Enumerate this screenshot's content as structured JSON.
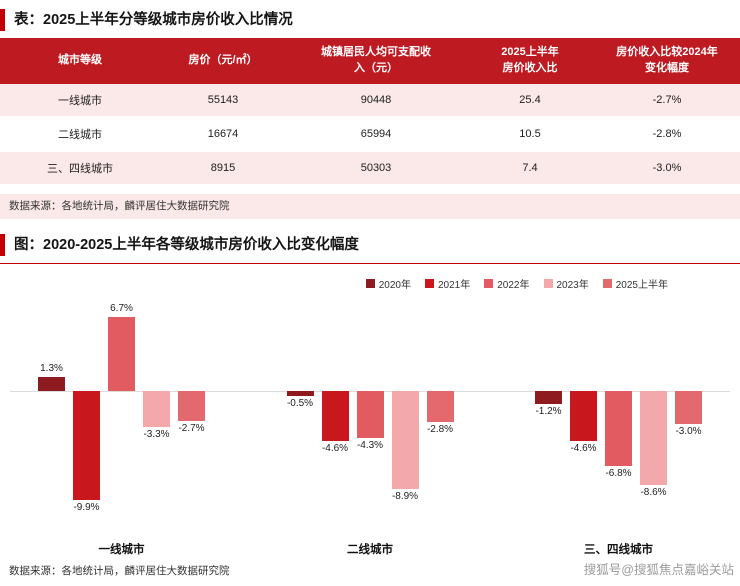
{
  "table_section": {
    "title": "表：2025上半年分等级城市房价收入比情况",
    "headers": [
      "城市等级",
      "房价（元/㎡）",
      "城镇居民人均可支配收\n入（元）",
      "2025上半年\n房价收入比",
      "房价收入比较2024年\n变化幅度"
    ],
    "source": "数据来源：各地统计局，麟评居住大数据研究院"
  },
  "chart_section": {
    "title": "图：2020-2025上半年各等级城市房价收入比变化幅度",
    "source": "数据来源：各地统计局，麟评居住大数据研究院"
  },
  "watermark": "搜狐号@搜狐焦点嘉峪关站",
  "colors": {
    "table_header_red": "#BD1A21",
    "accent_red": "#C00000",
    "row_pink": "#FBE8E8",
    "baseline_gray": "#DCDCDC",
    "watermark_gray": "#9B9B9B"
  },
  "chart_data": [
    {
      "type": "table",
      "title": "2025上半年分等级城市房价收入比情况",
      "columns": [
        "城市等级",
        "房价（元/㎡）",
        "城镇居民人均可支配收入（元）",
        "2025上半年房价收入比",
        "房价收入比较2024年变化幅度"
      ],
      "rows": [
        [
          "一线城市",
          "55143",
          "90448",
          "25.4",
          "-2.7%"
        ],
        [
          "二线城市",
          "16674",
          "65994",
          "10.5",
          "-2.8%"
        ],
        [
          "三、四线城市",
          "8915",
          "50303",
          "7.4",
          "-3.0%"
        ]
      ]
    },
    {
      "type": "bar",
      "title": "2020-2025上半年各等级城市房价收入比变化幅度",
      "categories": [
        "一线城市",
        "二线城市",
        "三、四线城市"
      ],
      "series": [
        {
          "name": "2020年",
          "color": "#8E1B1F",
          "values": [
            1.3,
            -0.5,
            -1.2
          ]
        },
        {
          "name": "2021年",
          "color": "#C9171E",
          "values": [
            -9.9,
            -4.6,
            -4.6
          ]
        },
        {
          "name": "2022年",
          "color": "#E25B60",
          "values": [
            6.7,
            -4.3,
            -6.8
          ]
        },
        {
          "name": "2023年",
          "color": "#F3A9AC",
          "values": [
            -3.3,
            -8.9,
            -8.6
          ]
        },
        {
          "name": "2025上半年",
          "color": "#E3696F",
          "values": [
            -2.7,
            -2.8,
            -3.0
          ]
        }
      ],
      "unit": "%",
      "ylim": [
        -11,
        8
      ],
      "legend_position": "top-right",
      "grid": false,
      "value_labels": true
    }
  ]
}
